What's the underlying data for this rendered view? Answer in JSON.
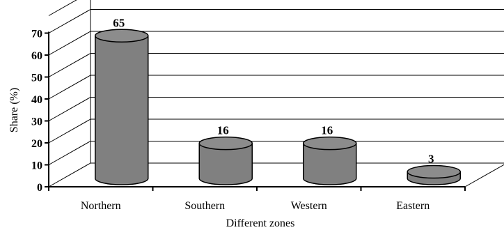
{
  "chart_data": {
    "type": "bar",
    "bar_style": "3d-cylinder",
    "categories": [
      "Northern",
      "Southern",
      "Western",
      "Eastern"
    ],
    "values": [
      65,
      16,
      16,
      3
    ],
    "data_labels": [
      "65",
      "16",
      "16",
      "3"
    ],
    "title": "",
    "xlabel": "Different zones",
    "ylabel": "Share (%)",
    "ylim": [
      0,
      70
    ],
    "yticks": [
      "0",
      "10",
      "20",
      "30",
      "40",
      "50",
      "60",
      "70"
    ],
    "grid": true,
    "legend": "none",
    "colors": {
      "bar_fill": "#808080",
      "bar_top": "#8c8c8c",
      "outline": "#000000",
      "background": "#ffffff"
    }
  }
}
